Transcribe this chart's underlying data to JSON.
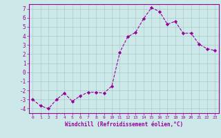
{
  "x": [
    0,
    1,
    2,
    3,
    4,
    5,
    6,
    7,
    8,
    9,
    10,
    11,
    12,
    13,
    14,
    15,
    16,
    17,
    18,
    19,
    20,
    21,
    22,
    23
  ],
  "y": [
    -3.0,
    -3.7,
    -4.0,
    -3.0,
    -2.3,
    -3.2,
    -2.6,
    -2.2,
    -2.2,
    -2.3,
    -1.5,
    2.2,
    3.9,
    4.4,
    5.9,
    7.1,
    6.7,
    5.3,
    5.6,
    4.3,
    4.3,
    3.1,
    2.6,
    2.4
  ],
  "line_color": "#990099",
  "marker": "D",
  "marker_size": 2.2,
  "bg_color": "#cce8e8",
  "grid_color": "#aacccc",
  "xlabel": "Windchill (Refroidissement éolien,°C)",
  "xlabel_color": "#990099",
  "tick_color": "#990099",
  "xlim": [
    -0.5,
    23.5
  ],
  "ylim": [
    -4.5,
    7.5
  ],
  "yticks": [
    -4,
    -3,
    -2,
    -1,
    0,
    1,
    2,
    3,
    4,
    5,
    6,
    7
  ],
  "xticks": [
    0,
    1,
    2,
    3,
    4,
    5,
    6,
    7,
    8,
    9,
    10,
    11,
    12,
    13,
    14,
    15,
    16,
    17,
    18,
    19,
    20,
    21,
    22,
    23
  ],
  "spine_color": "#990099",
  "axis_bg": "#cce8e8"
}
